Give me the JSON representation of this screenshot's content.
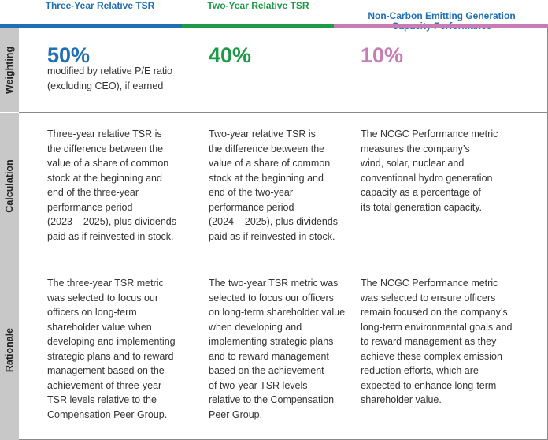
{
  "columns": [
    {
      "title": "Three-Year Relative TSR",
      "color": "#1f6fb5"
    },
    {
      "title": "Two-Year Relative TSR",
      "color": "#1e9b48"
    },
    {
      "title": "Non-Carbon Emitting Generation\nCapacity Performance",
      "color": "#c77cb5"
    }
  ],
  "rows": {
    "weighting": {
      "label": "Weighting",
      "values": [
        "50%",
        "40%",
        "10%"
      ],
      "note": "modified by relative P/E ratio\n(excluding CEO), if earned"
    },
    "calculation": {
      "label": "Calculation",
      "cells": [
        "Three-year relative TSR is\nthe difference between the\nvalue of a share of common\nstock at the beginning and\nend of the three-year\nperformance period\n(2023 – 2025), plus dividends\npaid as if reinvested in stock.",
        "Two-year relative TSR is\nthe difference between the\nvalue of a share of common\nstock at the beginning and\nend of the two-year\nperformance period\n(2024 – 2025), plus dividends\npaid as if reinvested in stock.",
        "The NCGC Performance metric\nmeasures the company’s\nwind, solar, nuclear and\nconventional hydro generation\ncapacity as a percentage of\nits total generation capacity."
      ]
    },
    "rationale": {
      "label": "Rationale",
      "cells": [
        "The three-year TSR metric\nwas selected to focus our\nofficers on long-term\nshareholder value when\ndeveloping and implementing\nstrategic plans and to reward\nmanagement based on the\nachievement of three-year\nTSR levels relative to the\nCompensation Peer Group.",
        "The two-year TSR metric was\nselected to focus our officers\non long-term shareholder value\nwhen developing and\nimplementing strategic plans\nand to reward management\nbased on the achievement\nof two-year TSR levels\nrelative to the Compensation\nPeer Group.",
        "The NCGC Performance metric\nwas selected to ensure officers\nremain focused on the company’s\nlong-term environmental goals and\nto reward management as they\nachieve these complex emission\nreduction efforts, which are\nexpected to enhance long-term\nshareholder value."
      ]
    }
  }
}
